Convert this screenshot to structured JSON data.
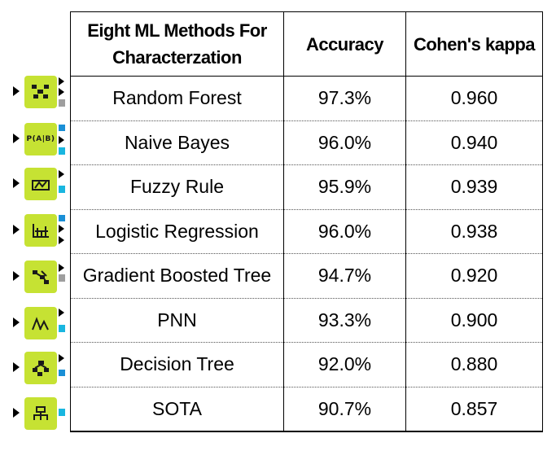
{
  "table": {
    "headers": {
      "method": "Eight ML Methods For Characterzation",
      "accuracy": "Accuracy",
      "kappa": "Cohen's kappa"
    },
    "rows": [
      {
        "method": "Random Forest",
        "accuracy": "97.3%",
        "kappa": "0.960",
        "icon": "random-forest-node-icon"
      },
      {
        "method": "Naive Bayes",
        "accuracy": "96.0%",
        "kappa": "0.940",
        "icon": "naive-bayes-node-icon"
      },
      {
        "method": "Fuzzy Rule",
        "accuracy": "95.9%",
        "kappa": "0.939",
        "icon": "fuzzy-rule-node-icon"
      },
      {
        "method": "Logistic Regression",
        "accuracy": "96.0%",
        "kappa": "0.938",
        "icon": "logistic-regression-node-icon"
      },
      {
        "method": "Gradient Boosted Tree",
        "accuracy": "94.7%",
        "kappa": "0.920",
        "icon": "gradient-boosted-tree-node-icon"
      },
      {
        "method": "PNN",
        "accuracy": "93.3%",
        "kappa": "0.900",
        "icon": "pnn-node-icon"
      },
      {
        "method": "Decision Tree",
        "accuracy": "92.0%",
        "kappa": "0.880",
        "icon": "decision-tree-node-icon"
      },
      {
        "method": "SOTA",
        "accuracy": "90.7%",
        "kappa": "0.857",
        "icon": "sota-node-icon"
      }
    ]
  },
  "node_icons": {
    "naive_bayes_label": "P(A|B)",
    "color_node": "#c6e233",
    "color_port_blue": "#1a8fd6",
    "color_port_cyan": "#19b6e0",
    "color_port_gray": "#9e9e9e"
  }
}
